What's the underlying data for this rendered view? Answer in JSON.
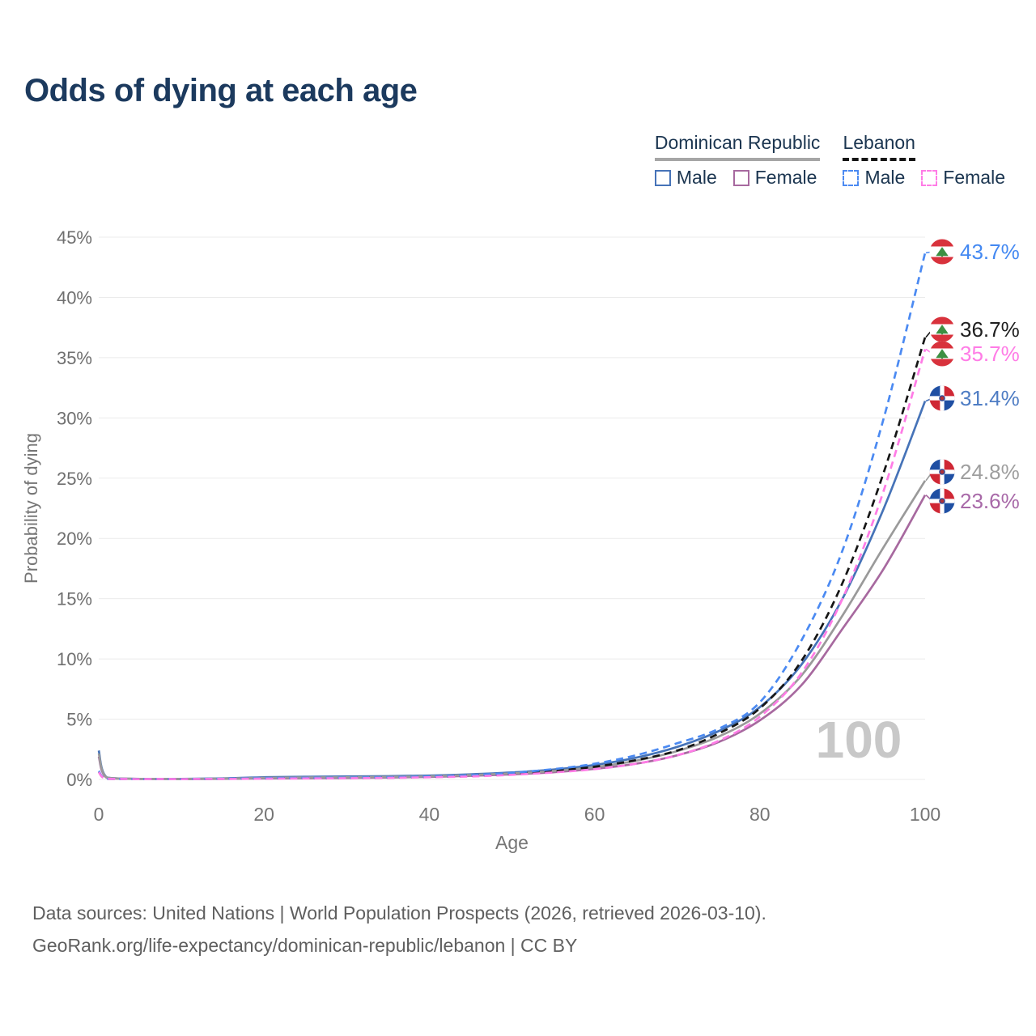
{
  "page_title": "Odds of dying at each age",
  "legend": {
    "groups": [
      {
        "label": "Dominican Republic",
        "line_style": "solid",
        "line_color": "#a6a6a6",
        "items": [
          {
            "label": "Male",
            "color": "#4673b8",
            "dash": "solid"
          },
          {
            "label": "Female",
            "color": "#a7699f",
            "dash": "solid"
          }
        ]
      },
      {
        "label": "Lebanon",
        "line_style": "dashed",
        "line_color": "#161616",
        "items": [
          {
            "label": "Male",
            "color": "#4b8af2",
            "dash": "dashed"
          },
          {
            "label": "Female",
            "color": "#ff7ce6",
            "dash": "dashed"
          }
        ]
      }
    ]
  },
  "footer": {
    "line1": "Data sources: United Nations | World Population Prospects (2026, retrieved 2026-03-10).",
    "line2": "GeoRank.org/life-expectancy/dominican-republic/lebanon | CC BY"
  },
  "chart_data": {
    "type": "line",
    "title": "Odds of dying at each age",
    "xlabel": "Age",
    "ylabel": "Probability of dying",
    "xlim": [
      0,
      100
    ],
    "ylim_percent": [
      0,
      45
    ],
    "x_ticks": [
      0,
      20,
      40,
      60,
      80,
      100
    ],
    "y_ticks_percent": [
      0,
      5,
      10,
      15,
      20,
      25,
      30,
      35,
      40,
      45
    ],
    "grid": "horizontal",
    "legend_position": "top-right",
    "hover_age_indicator": "100",
    "ages": [
      0,
      1,
      5,
      10,
      15,
      20,
      25,
      30,
      35,
      40,
      45,
      50,
      55,
      60,
      65,
      70,
      75,
      80,
      85,
      90,
      95,
      100
    ],
    "series": [
      {
        "id": "dr_male",
        "name": "Dominican Republic — Male",
        "country": "Dominican Republic",
        "sex": "Male",
        "line": "solid",
        "color": "#4673b8",
        "flag": "do",
        "end_label": "31.4%",
        "label_color": "#4f7dc4",
        "values": [
          2.4,
          0.16,
          0.05,
          0.04,
          0.09,
          0.18,
          0.22,
          0.24,
          0.27,
          0.32,
          0.42,
          0.58,
          0.82,
          1.2,
          1.8,
          2.7,
          4.0,
          6.0,
          9.5,
          15.0,
          22.5,
          31.4
        ]
      },
      {
        "id": "dr_female",
        "name": "Dominican Republic — Female",
        "country": "Dominican Republic",
        "sex": "Female",
        "line": "solid",
        "color": "#a7699f",
        "flag": "do",
        "end_label": "23.6%",
        "label_color": "#a869a8",
        "values": [
          1.9,
          0.13,
          0.04,
          0.03,
          0.05,
          0.08,
          0.1,
          0.12,
          0.16,
          0.21,
          0.3,
          0.42,
          0.6,
          0.88,
          1.3,
          2.0,
          3.1,
          4.9,
          7.8,
          12.5,
          17.5,
          23.6
        ]
      },
      {
        "id": "dr_total",
        "name": "Dominican Republic — Total",
        "country": "Dominican Republic",
        "sex": "Total",
        "line": "solid",
        "color": "#9a9a9a",
        "flag": "do",
        "end_label": "24.8%",
        "label_color": "#9e9e9e",
        "values": [
          2.15,
          0.15,
          0.045,
          0.035,
          0.07,
          0.13,
          0.16,
          0.18,
          0.21,
          0.26,
          0.36,
          0.5,
          0.7,
          1.02,
          1.55,
          2.35,
          3.55,
          5.45,
          8.6,
          13.6,
          19.3,
          24.8
        ]
      },
      {
        "id": "lb_total",
        "name": "Lebanon — Total",
        "country": "Lebanon",
        "sex": "Total",
        "line": "dashed",
        "color": "#161616",
        "flag": "lb",
        "end_label": "36.7%",
        "label_color": "#1f1f1f",
        "values": [
          0.65,
          0.045,
          0.025,
          0.025,
          0.05,
          0.08,
          0.1,
          0.12,
          0.155,
          0.21,
          0.3,
          0.46,
          0.7,
          1.05,
          1.6,
          2.4,
          3.8,
          5.9,
          9.8,
          16.3,
          25.5,
          36.7
        ]
      },
      {
        "id": "lb_male",
        "name": "Lebanon — Male",
        "country": "Lebanon",
        "sex": "Male",
        "line": "dashed",
        "color": "#4b8af2",
        "flag": "lb",
        "end_label": "43.7%",
        "label_color": "#4489f2",
        "values": [
          0.7,
          0.05,
          0.03,
          0.03,
          0.06,
          0.1,
          0.13,
          0.15,
          0.18,
          0.25,
          0.35,
          0.55,
          0.85,
          1.3,
          2.0,
          3.0,
          4.2,
          6.4,
          11.5,
          19.0,
          30.0,
          43.7
        ]
      },
      {
        "id": "lb_female",
        "name": "Lebanon — Female",
        "country": "Lebanon",
        "sex": "Female",
        "line": "dashed",
        "color": "#ff7ce6",
        "flag": "lb",
        "end_label": "35.7%",
        "label_color": "#ff7ce6",
        "values": [
          0.6,
          0.04,
          0.02,
          0.02,
          0.04,
          0.06,
          0.08,
          0.1,
          0.13,
          0.18,
          0.25,
          0.38,
          0.58,
          0.85,
          1.3,
          2.0,
          3.2,
          5.2,
          8.8,
          15.0,
          24.0,
          35.7
        ]
      }
    ]
  }
}
